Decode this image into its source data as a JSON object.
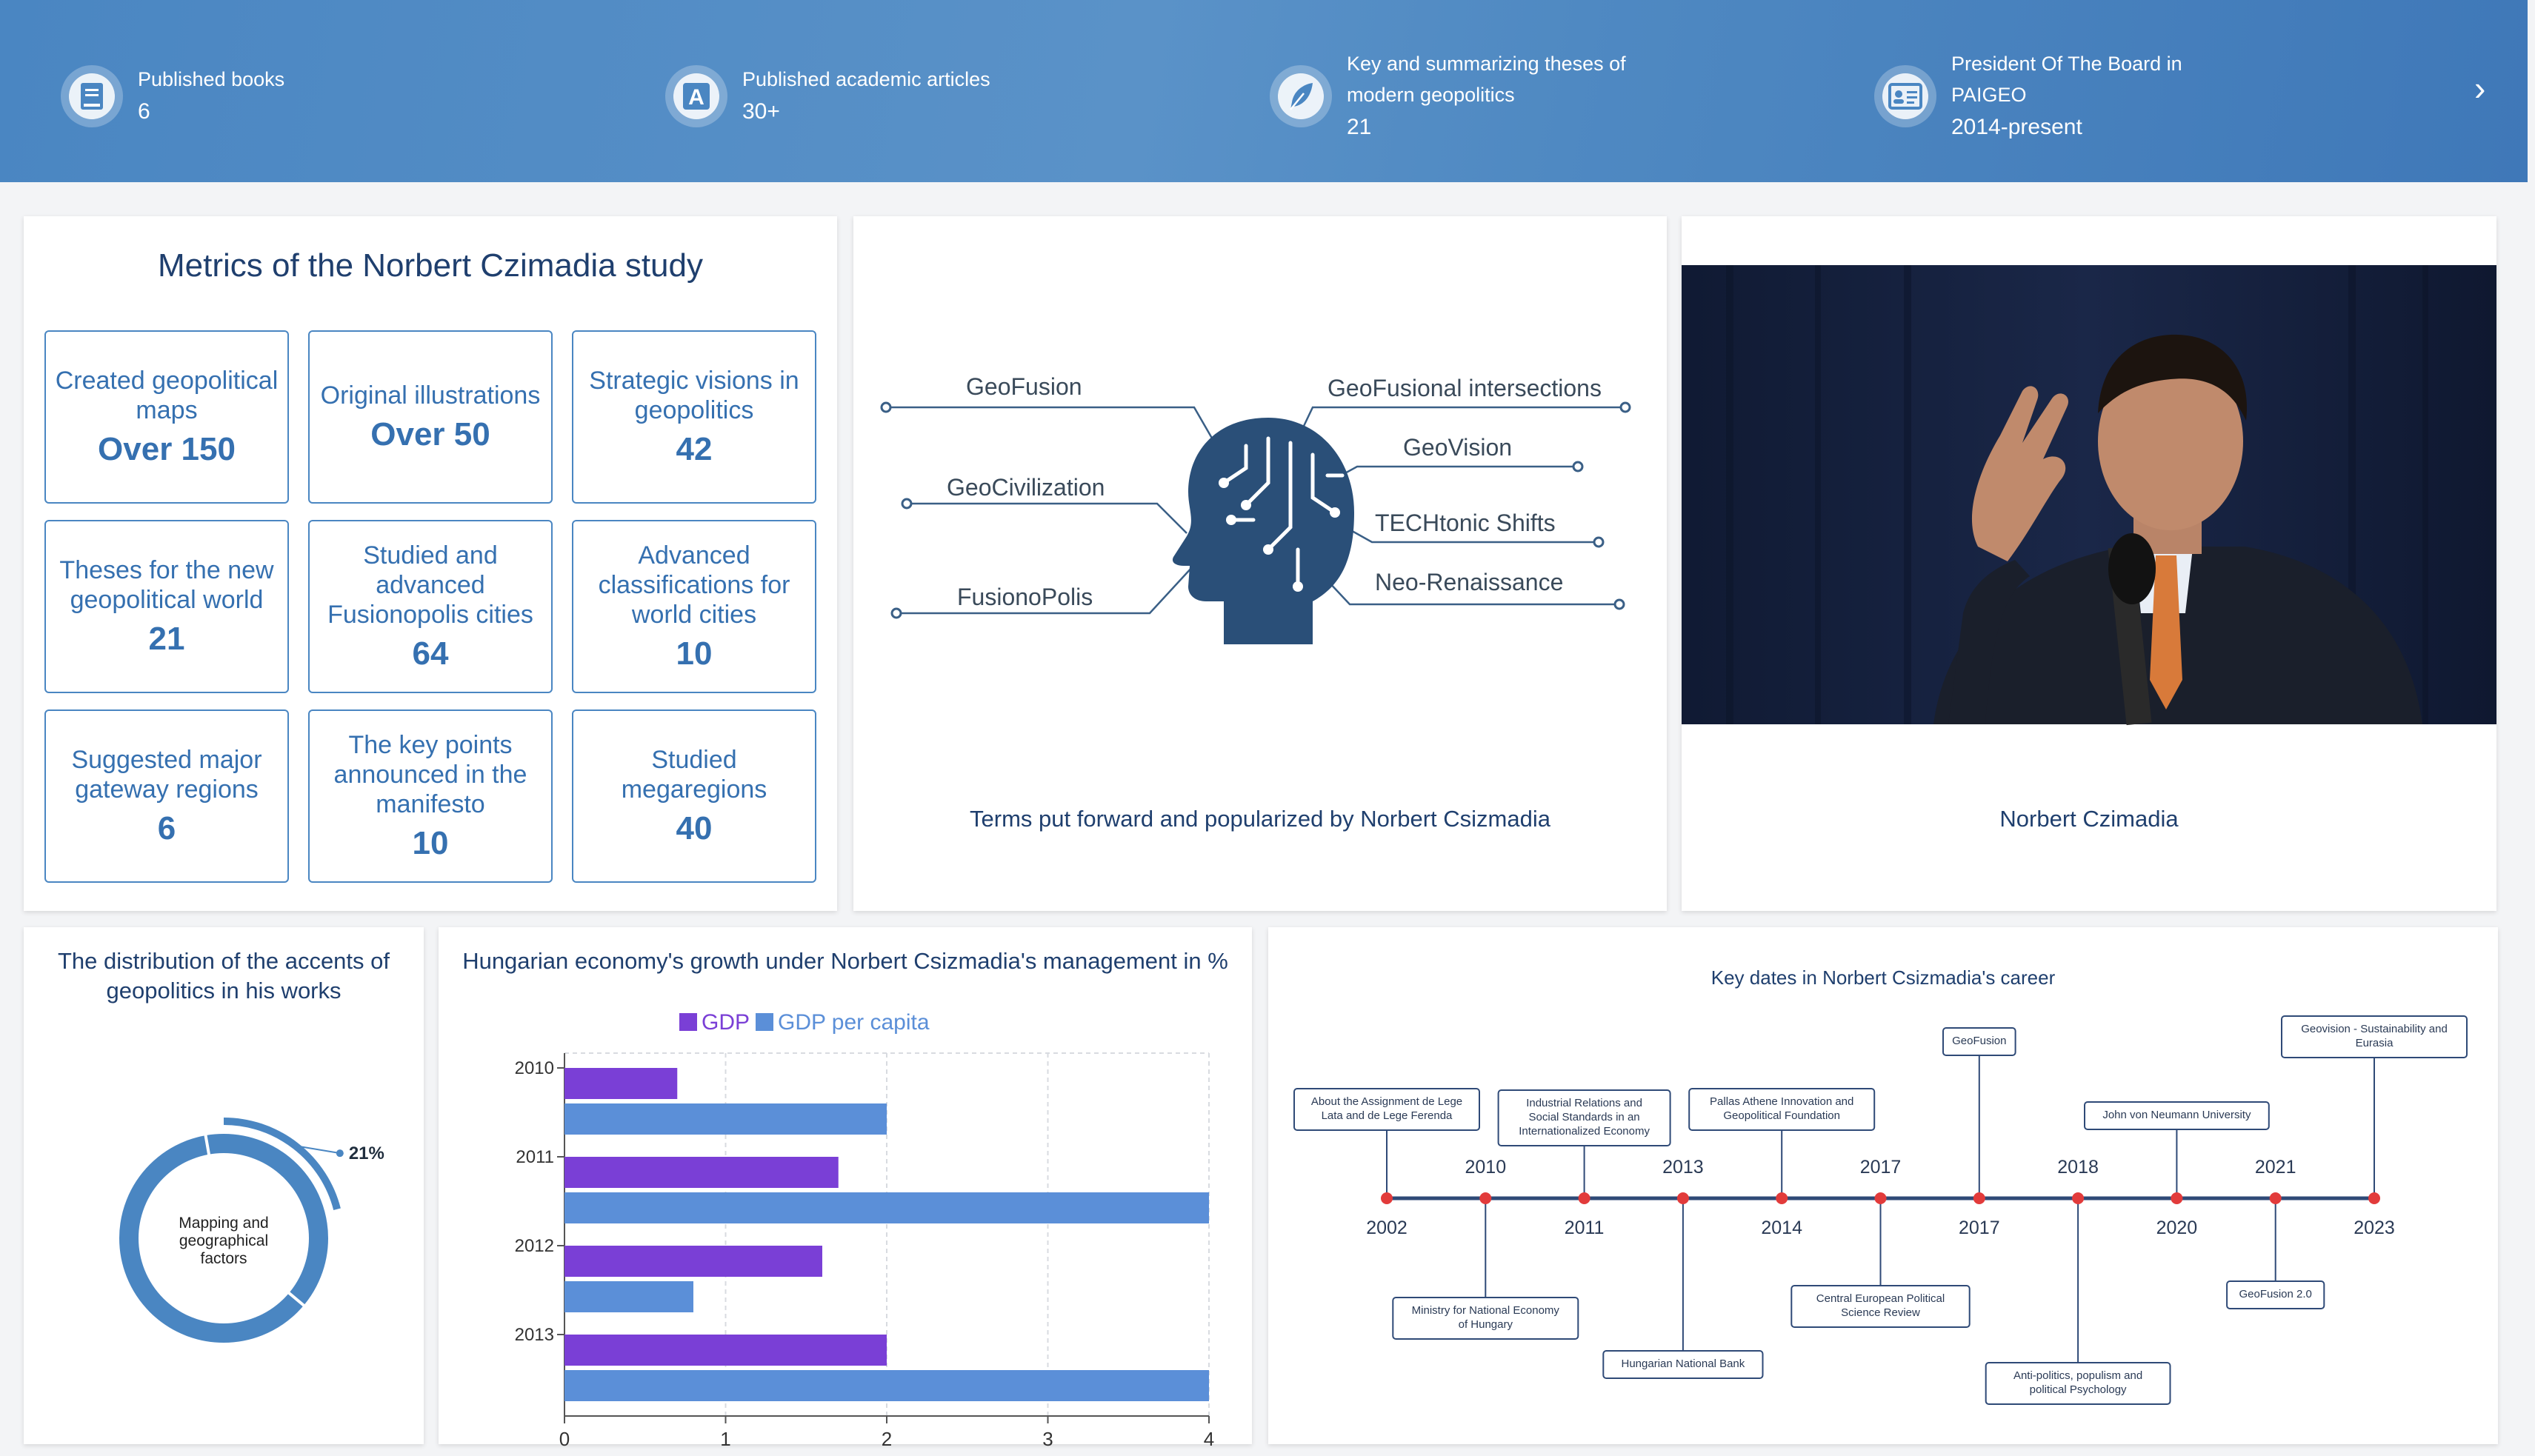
{
  "stats": [
    {
      "label": "Published books",
      "label2": "",
      "value": "6",
      "icon": "book-icon"
    },
    {
      "label": "Published academic articles",
      "label2": "",
      "value": "30+",
      "icon": "article-icon"
    },
    {
      "label": "Key and summarizing theses of",
      "label2": "modern geopolitics",
      "value": "21",
      "icon": "feather-icon"
    },
    {
      "label": "President Of The Board in",
      "label2": "PAIGEO",
      "value": "2014-present",
      "icon": "id-card-icon"
    }
  ],
  "metrics": {
    "title": "Metrics of the Norbert Czimadia study",
    "items": [
      {
        "label": "Created geopolitical maps",
        "value": "Over 150"
      },
      {
        "label": "Original illustrations",
        "value": "Over 50"
      },
      {
        "label": "Strategic visions in geopolitics",
        "value": "42"
      },
      {
        "label": "Theses for the new geopolitical world",
        "value": "21"
      },
      {
        "label": "Studied and advanced Fusionopolis cities",
        "value": "64"
      },
      {
        "label": "Advanced classifications for world cities",
        "value": "10"
      },
      {
        "label": "Suggested major gateway regions",
        "value": "6"
      },
      {
        "label": "The key points announced in the manifesto",
        "value": "10"
      },
      {
        "label": "Studied megaregions",
        "value": "40"
      }
    ]
  },
  "terms": {
    "caption": "Terms put forward and popularized by Norbert Csizmadia",
    "left": [
      "GeoFusion",
      "GeoCivilization",
      "FusionoPolis"
    ],
    "right": [
      "GeoFusional intersections",
      "GeoVision",
      "TECHtonic Shifts",
      "Neo-Renaissance"
    ]
  },
  "photo": {
    "caption": "Norbert Czimadia"
  },
  "donut": {
    "title_line1": "The distribution of the accents of",
    "title_line2": "geopolitics in his works",
    "center_line1": "Mapping and",
    "center_line2": "geographical",
    "center_line3": "factors",
    "percent_label": "21%",
    "share": 0.21,
    "color": "#4a86c2"
  },
  "chart_data": {
    "type": "bar",
    "title": "Hungarian economy's growth under Norbert Csizmadia's management in %",
    "categories": [
      "2010",
      "2011",
      "2012",
      "2013"
    ],
    "series": [
      {
        "name": "GDP",
        "values": [
          0.7,
          1.7,
          1.6,
          2.0
        ],
        "color": "#7a3fd6"
      },
      {
        "name": "GDP per capita",
        "values": [
          2.0,
          4.0,
          0.8,
          4.0
        ],
        "color": "#5b8fd8"
      }
    ],
    "xlim": [
      0,
      4
    ],
    "xticks": [
      "0",
      "1",
      "2",
      "3",
      "4"
    ],
    "orientation": "horizontal",
    "grid": true,
    "legend": "top"
  },
  "timeline": {
    "title": "Key dates in Norbert Csizmadia's career",
    "events": [
      {
        "year": "2002",
        "label": "About the Assignment de Lege Lata and de Lege Ferenda",
        "year_pos": "below",
        "label_pos": "above"
      },
      {
        "year": "2010",
        "label": "Ministry for National Economy of Hungary",
        "year_pos": "above",
        "label_pos": "below"
      },
      {
        "year": "2011",
        "label": "Industrial Relations and Social Standards in an Internationalized Economy",
        "year_pos": "below",
        "label_pos": "above"
      },
      {
        "year": "2013",
        "label": "Hungarian National Bank",
        "year_pos": "above",
        "label_pos": "below"
      },
      {
        "year": "2014",
        "label": "Pallas Athene Innovation and Geopolitical Foundation",
        "year_pos": "below",
        "label_pos": "above"
      },
      {
        "year": "2017",
        "label": "Central European Political Science Review",
        "year_pos": "above",
        "label_pos": "below"
      },
      {
        "year": "2017",
        "label": "GeoFusion",
        "year_pos": "below",
        "label_pos": "above"
      },
      {
        "year": "2018",
        "label": "Anti-politics, populism and political Psychology",
        "year_pos": "above",
        "label_pos": "below"
      },
      {
        "year": "2020",
        "label": "John von Neumann University",
        "year_pos": "below",
        "label_pos": "above"
      },
      {
        "year": "2021",
        "label": "GeoFusion 2.0",
        "year_pos": "above",
        "label_pos": "below"
      },
      {
        "year": "2023",
        "label": "Geovision - Sustainability and Eurasia",
        "year_pos": "below",
        "label_pos": "above"
      }
    ]
  }
}
